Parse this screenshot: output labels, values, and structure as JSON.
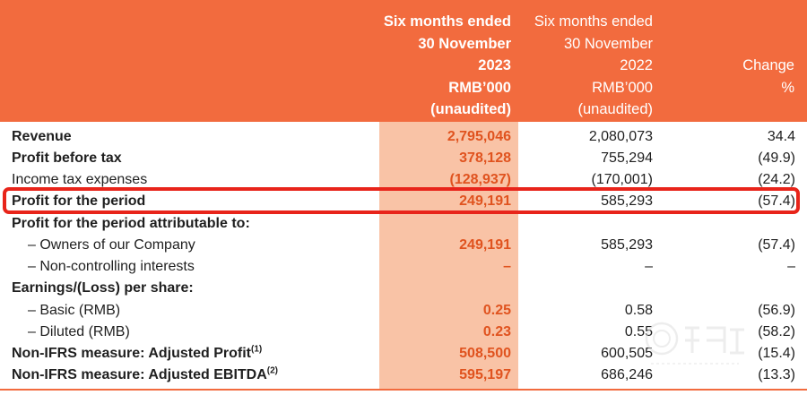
{
  "header": {
    "col1": [
      "Six months ended",
      "30 November",
      "2023",
      "RMB’000",
      "(unaudited)"
    ],
    "col2": [
      "Six months ended",
      "30 November",
      "2022",
      "RMB’000",
      "(unaudited)"
    ],
    "col3": [
      "Change",
      "%"
    ]
  },
  "rows": [
    {
      "label": "Revenue",
      "bold": true,
      "indent": false,
      "v2023": "2,795,046",
      "v2022": "2,080,073",
      "change": "34.4"
    },
    {
      "label": "Profit before tax",
      "bold": true,
      "indent": false,
      "v2023": "378,128",
      "v2022": "755,294",
      "change": "(49.9)"
    },
    {
      "label": "Income tax expenses",
      "bold": false,
      "indent": false,
      "v2023": "(128,937)",
      "v2022": "(170,001)",
      "change": "(24.2)"
    },
    {
      "label": "Profit for the period",
      "bold": true,
      "indent": false,
      "v2023": "249,191",
      "v2022": "585,293",
      "change": "(57.4)"
    },
    {
      "label": "Profit for the period attributable to:",
      "bold": true,
      "indent": false,
      "v2023": "",
      "v2022": "",
      "change": ""
    },
    {
      "label": "– Owners of our Company",
      "bold": false,
      "indent": true,
      "v2023": "249,191",
      "v2022": "585,293",
      "change": "(57.4)"
    },
    {
      "label": "– Non-controlling interests",
      "bold": false,
      "indent": true,
      "v2023": "–",
      "v2022": "–",
      "change": "–"
    },
    {
      "label": "Earnings/(Loss) per share:",
      "bold": true,
      "indent": false,
      "v2023": "",
      "v2022": "",
      "change": ""
    },
    {
      "label": "– Basic (RMB)",
      "bold": false,
      "indent": true,
      "v2023": "0.25",
      "v2022": "0.58",
      "change": "(56.9)"
    },
    {
      "label": "– Diluted (RMB)",
      "bold": false,
      "indent": true,
      "v2023": "0.23",
      "v2022": "0.55",
      "change": "(58.2)"
    },
    {
      "label": "Non-IFRS measure: Adjusted Profit",
      "sup": "(1)",
      "bold": true,
      "indent": false,
      "v2023": "508,500",
      "v2022": "600,505",
      "change": "(15.4)"
    },
    {
      "label": "Non-IFRS measure: Adjusted EBITDA",
      "sup": "(2)",
      "bold": true,
      "indent": false,
      "v2023": "595,197",
      "v2022": "686,246",
      "change": "(13.3)"
    }
  ],
  "colors": {
    "header_bg": "#f26b3e",
    "highlight_column": "#f9c3a6",
    "current_period_text": "#e0531f",
    "callout_border": "#e8241a"
  }
}
